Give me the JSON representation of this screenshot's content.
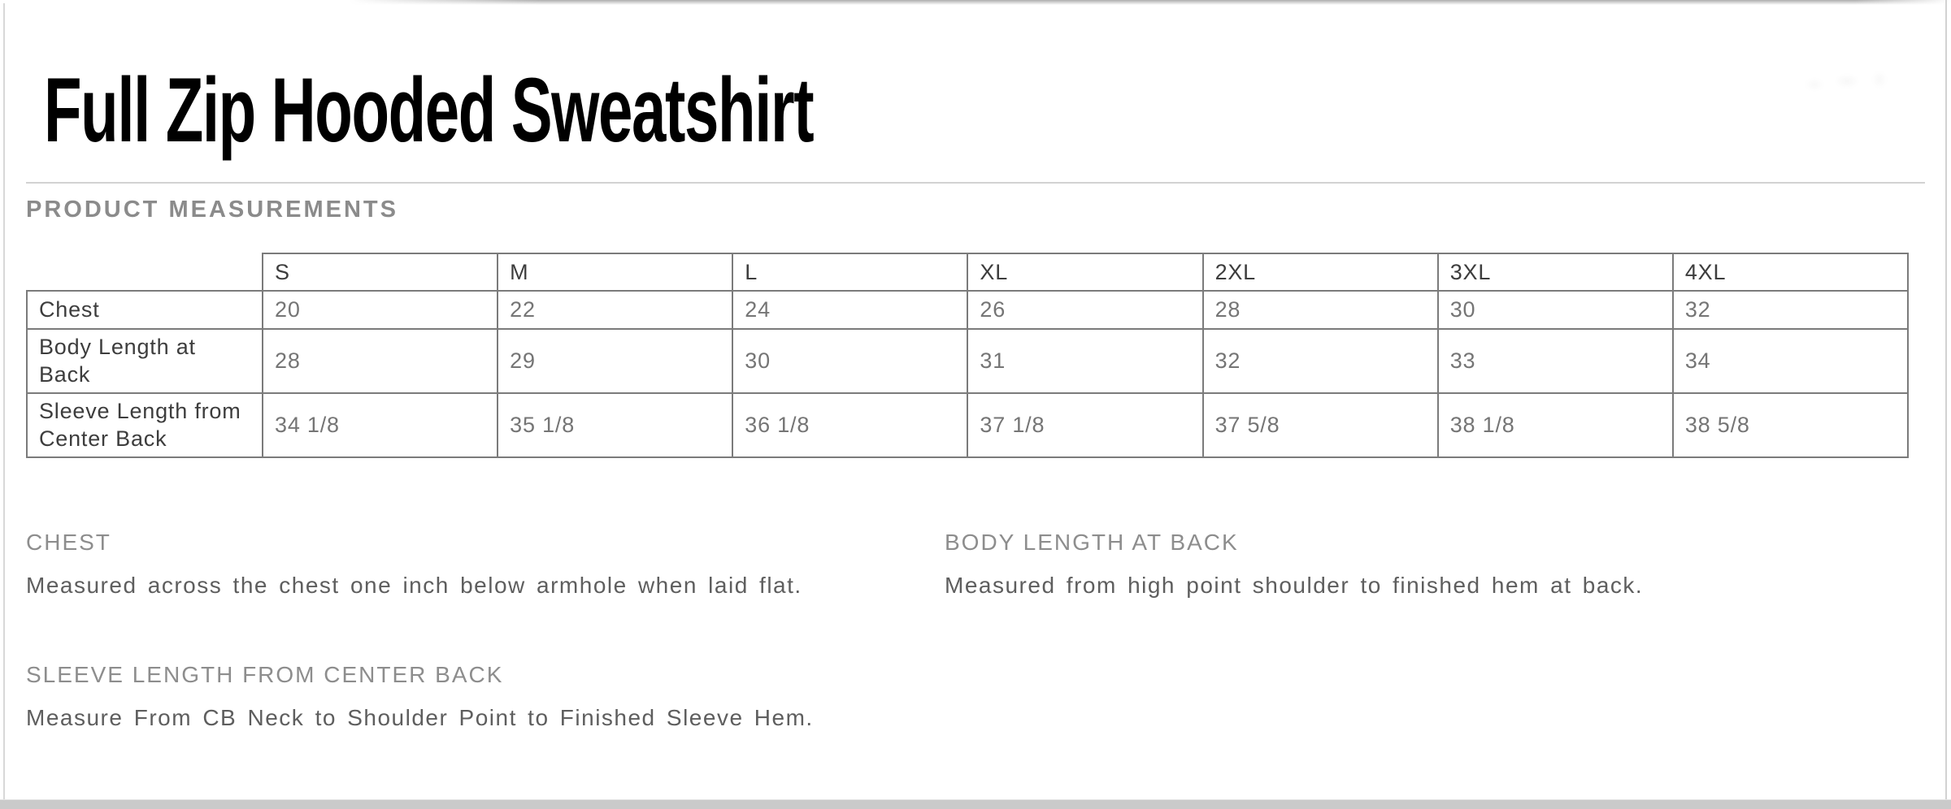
{
  "page": {
    "title": "Full Zip Hooded Sweatshirt",
    "section_heading": "PRODUCT MEASUREMENTS"
  },
  "table": {
    "corner_label": "",
    "columns": [
      "S",
      "M",
      "L",
      "XL",
      "2XL",
      "3XL",
      "4XL"
    ],
    "rows": [
      {
        "label": "Chest",
        "values": [
          "20",
          "22",
          "24",
          "26",
          "28",
          "30",
          "32"
        ]
      },
      {
        "label": "Body Length at Back",
        "values": [
          "28",
          "29",
          "30",
          "31",
          "32",
          "33",
          "34"
        ]
      },
      {
        "label": "Sleeve Length from Center Back",
        "values": [
          "34 1/8",
          "35 1/8",
          "36 1/8",
          "37 1/8",
          "37 5/8",
          "38 1/8",
          "38 5/8"
        ]
      }
    ]
  },
  "definitions": [
    {
      "heading": "CHEST",
      "text": "Measured across the chest one inch below armhole when laid flat."
    },
    {
      "heading": "BODY LENGTH AT BACK",
      "text": "Measured from high point shoulder to finished hem at back."
    },
    {
      "heading": "SLEEVE LENGTH FROM CENTER BACK",
      "text": "Measure From CB Neck to Shoulder Point to Finished Sleeve Hem."
    }
  ],
  "colors": {
    "title_text": "#000000",
    "section_heading_text": "#8b8b8b",
    "table_border": "#7b7b7b",
    "table_label_text": "#3d3d3d",
    "table_value_text": "#757575",
    "definition_heading_text": "#8d8d8d",
    "definition_body_text": "#5e5e5e",
    "divider": "#d2d2d2",
    "bottom_bar": "#cacaca"
  }
}
